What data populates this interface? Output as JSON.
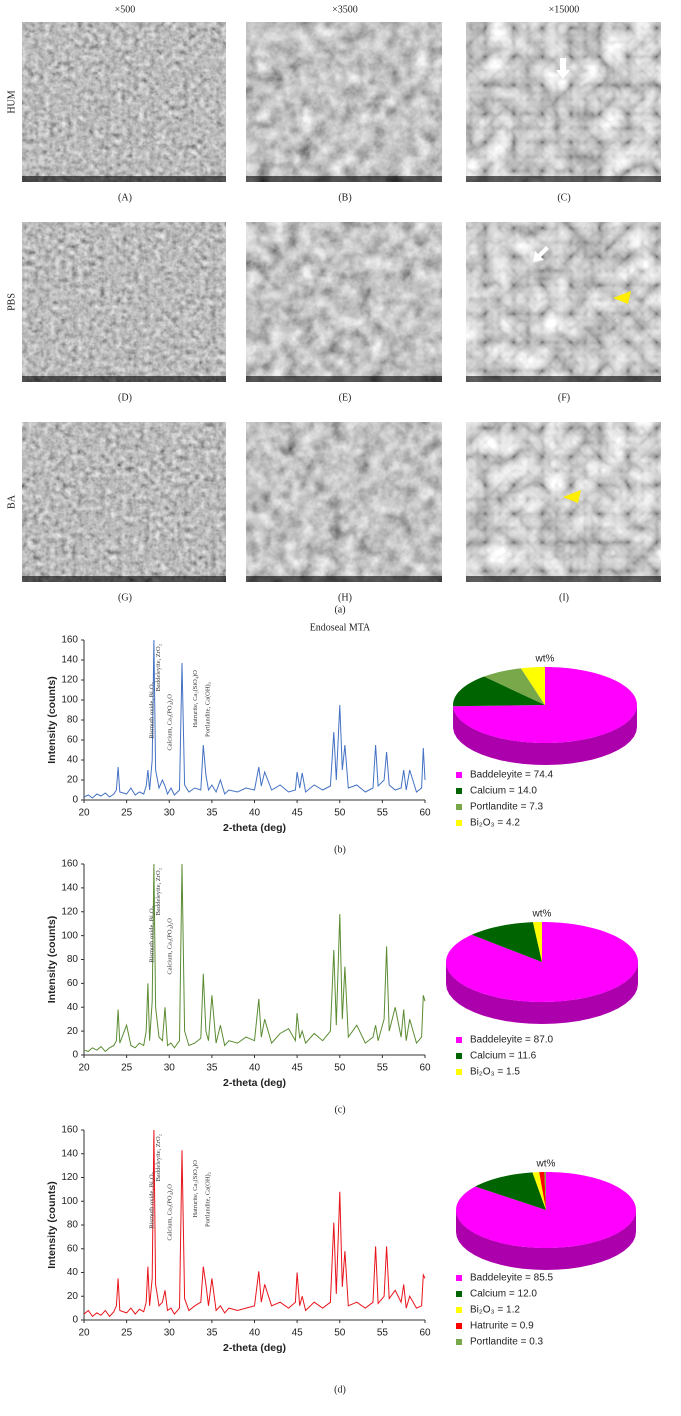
{
  "figure": {
    "column_labels": [
      "×500",
      "×3500",
      "×15000"
    ],
    "row_labels": [
      "HUM",
      "PBS",
      "BA"
    ],
    "panel_labels": [
      "(A)",
      "(B)",
      "(C)",
      "(D)",
      "(E)",
      "(F)",
      "(G)",
      "(H)",
      "(I)"
    ],
    "figure_labels": [
      "(a)",
      "(b)",
      "(c)",
      "(d)"
    ]
  },
  "chart_data": [
    {
      "type": "line",
      "title": "Endoseal MTA",
      "x_label": "2-theta (deg)",
      "y_label": "Intensity (counts)",
      "color": "#4472c4",
      "xlim": [
        20,
        60
      ],
      "xticks": [
        20,
        25,
        30,
        35,
        40,
        45,
        50,
        55,
        60
      ],
      "ylim": [
        0,
        160
      ],
      "yticks": [
        0,
        20,
        40,
        60,
        80,
        100,
        120,
        140,
        160
      ],
      "annotations": [
        {
          "text": "Baddeleyite, ZrO₂",
          "x": 28.3
        },
        {
          "text": "Bismuth oxide, Bi₂O₃",
          "x": 27.5
        },
        {
          "text": "Calcium, Ca₃(PO₄)₂O",
          "x": 29.6
        },
        {
          "text": "Hatrurite, Ca₃(SiO₄)O",
          "x": 32.6
        },
        {
          "text": "Portlandite, Ca(OH)₂",
          "x": 34.1
        }
      ],
      "x": [
        20,
        20.5,
        21,
        21.5,
        22,
        22.5,
        23,
        23.5,
        23.8,
        24,
        24.2,
        25,
        25.5,
        26,
        26.5,
        27,
        27.3,
        27.5,
        27.7,
        28,
        28.2,
        28.4,
        28.8,
        29.2,
        29.5,
        29.8,
        30.2,
        30.6,
        31.2,
        31.5,
        31.8,
        32.3,
        33,
        33.7,
        34,
        34.3,
        34.6,
        35,
        35.5,
        36,
        36.5,
        37,
        38,
        39,
        40,
        40.5,
        40.8,
        41.2,
        42,
        43,
        44,
        44.8,
        45,
        45.3,
        45.6,
        46,
        47,
        48,
        48.9,
        49.3,
        49.6,
        50,
        50.3,
        50.6,
        51,
        52,
        53,
        53.9,
        54.2,
        54.5,
        55.2,
        55.5,
        55.8,
        56.5,
        57.2,
        57.5,
        57.8,
        58.2,
        59,
        59.6,
        59.8,
        60
      ],
      "values": [
        3,
        5,
        2,
        6,
        4,
        7,
        3,
        6,
        10,
        33,
        8,
        6,
        12,
        5,
        8,
        6,
        14,
        30,
        10,
        40,
        160,
        30,
        12,
        20,
        14,
        6,
        12,
        5,
        10,
        137,
        15,
        8,
        12,
        10,
        55,
        25,
        10,
        15,
        8,
        20,
        6,
        10,
        8,
        12,
        10,
        33,
        14,
        28,
        10,
        15,
        8,
        10,
        28,
        12,
        27,
        8,
        15,
        10,
        14,
        68,
        20,
        95,
        30,
        55,
        12,
        15,
        8,
        12,
        55,
        14,
        20,
        48,
        15,
        10,
        12,
        30,
        10,
        30,
        8,
        12,
        52,
        20
      ]
    },
    {
      "type": "pie",
      "title": "wt%",
      "categories": [
        "Baddeleyite",
        "Calcium",
        "Portlandite",
        "Bi₂O₃"
      ],
      "values": [
        74.4,
        14.0,
        7.3,
        4.2
      ],
      "value_labels": [
        "Baddeleyite = 74.4",
        "Calcium = 14.0",
        "Portlandite = 7.3",
        "Bi₂O₃ = 4.2"
      ],
      "colors": [
        "#ff00ff",
        "#006400",
        "#78a84a",
        "#ffff00"
      ]
    },
    {
      "type": "line",
      "x_label": "2-theta (deg)",
      "y_label": "Intensity (counts)",
      "color": "#5b8c32",
      "xlim": [
        20,
        60
      ],
      "xticks": [
        20,
        25,
        30,
        35,
        40,
        45,
        50,
        55,
        60
      ],
      "ylim": [
        0,
        160
      ],
      "yticks": [
        0,
        20,
        40,
        60,
        80,
        100,
        120,
        140,
        160
      ],
      "annotations": [
        {
          "text": "Baddeleyite, ZrO₂",
          "x": 28.3
        },
        {
          "text": "Bismuth oxide, Bi₂O₃",
          "x": 27.5
        },
        {
          "text": "Calcium, Ca₃(PO₄)₂O",
          "x": 29.6
        }
      ],
      "x": [
        20,
        20.5,
        21,
        21.5,
        22,
        22.5,
        23,
        23.5,
        23.8,
        24,
        24.2,
        25,
        25.5,
        26,
        26.5,
        27,
        27.3,
        27.5,
        27.7,
        28,
        28.2,
        28.4,
        28.8,
        29.2,
        29.5,
        29.8,
        30.2,
        30.6,
        31.2,
        31.5,
        31.8,
        32.3,
        33,
        33.7,
        34,
        34.3,
        34.6,
        35,
        35.5,
        36,
        36.5,
        37,
        38,
        39,
        40,
        40.5,
        40.8,
        41.2,
        42,
        43,
        44,
        44.8,
        45,
        45.3,
        45.6,
        46,
        47,
        48,
        48.9,
        49.3,
        49.6,
        50,
        50.3,
        50.6,
        51,
        52,
        53,
        53.9,
        54.2,
        54.5,
        55.2,
        55.5,
        55.8,
        56.5,
        57.2,
        57.5,
        57.8,
        58.2,
        59,
        59.6,
        59.8,
        60
      ],
      "values": [
        4,
        3,
        6,
        4,
        7,
        3,
        6,
        8,
        12,
        38,
        10,
        25,
        8,
        6,
        10,
        8,
        20,
        60,
        12,
        45,
        160,
        40,
        15,
        12,
        40,
        8,
        10,
        6,
        12,
        160,
        20,
        8,
        10,
        14,
        68,
        20,
        12,
        50,
        10,
        25,
        8,
        12,
        10,
        15,
        12,
        47,
        15,
        30,
        10,
        18,
        22,
        12,
        35,
        14,
        20,
        10,
        18,
        12,
        20,
        88,
        25,
        118,
        30,
        74,
        15,
        25,
        10,
        15,
        25,
        12,
        30,
        91,
        20,
        40,
        15,
        38,
        12,
        30,
        10,
        15,
        50,
        45
      ]
    },
    {
      "type": "pie",
      "title": "wt%",
      "categories": [
        "Baddeleyite",
        "Calcium",
        "Bi₂O₃"
      ],
      "values": [
        87.0,
        11.6,
        1.5
      ],
      "value_labels": [
        "Baddeleyite = 87.0",
        "Calcium = 11.6",
        "Bi₂O₃ = 1.5"
      ],
      "colors": [
        "#ff00ff",
        "#006400",
        "#ffff00"
      ]
    },
    {
      "type": "line",
      "x_label": "2-theta (deg)",
      "y_label": "Intensity (counts)",
      "color": "#e8141b",
      "xlim": [
        20,
        60
      ],
      "xticks": [
        20,
        25,
        30,
        35,
        40,
        45,
        50,
        55,
        60
      ],
      "ylim": [
        0,
        160
      ],
      "yticks": [
        0,
        20,
        40,
        60,
        80,
        100,
        120,
        140,
        160
      ],
      "annotations": [
        {
          "text": "Baddeleyite, ZrO₂",
          "x": 28.3
        },
        {
          "text": "Bismuth oxide, Bi₂O₃",
          "x": 27.5
        },
        {
          "text": "Calcium, Ca₃(PO₄)₂O",
          "x": 29.6
        },
        {
          "text": "Hatrurite, Ca₃(SiO₄)O",
          "x": 32.6
        },
        {
          "text": "Portlandite, Ca(OH)₂",
          "x": 34.1
        }
      ],
      "x": [
        20,
        20.5,
        21,
        21.5,
        22,
        22.5,
        23,
        23.5,
        23.8,
        24,
        24.2,
        25,
        25.5,
        26,
        26.5,
        27,
        27.3,
        27.5,
        27.7,
        28,
        28.2,
        28.4,
        28.8,
        29.2,
        29.5,
        29.8,
        30.2,
        30.6,
        31.2,
        31.5,
        31.8,
        32.3,
        33,
        33.7,
        34,
        34.3,
        34.6,
        35,
        35.5,
        36,
        36.5,
        37,
        38,
        39,
        40,
        40.5,
        40.8,
        41.2,
        42,
        43,
        44,
        44.8,
        45,
        45.3,
        45.6,
        46,
        47,
        48,
        48.9,
        49.3,
        49.6,
        50,
        50.3,
        50.6,
        51,
        52,
        53,
        53.9,
        54.2,
        54.5,
        55.2,
        55.5,
        55.8,
        56.5,
        57.2,
        57.5,
        57.8,
        58.2,
        59,
        59.6,
        59.8,
        60
      ],
      "values": [
        5,
        8,
        3,
        6,
        4,
        8,
        3,
        7,
        12,
        35,
        8,
        6,
        10,
        5,
        9,
        7,
        15,
        45,
        12,
        35,
        160,
        30,
        12,
        15,
        25,
        8,
        10,
        5,
        10,
        143,
        18,
        8,
        12,
        15,
        45,
        30,
        12,
        35,
        8,
        12,
        6,
        10,
        8,
        10,
        12,
        41,
        15,
        30,
        12,
        15,
        10,
        15,
        40,
        12,
        20,
        8,
        15,
        10,
        15,
        82,
        22,
        108,
        28,
        58,
        12,
        15,
        10,
        15,
        62,
        14,
        20,
        62,
        18,
        25,
        15,
        30,
        10,
        20,
        10,
        12,
        38,
        35
      ]
    },
    {
      "type": "pie",
      "title": "wt%",
      "categories": [
        "Baddeleyite",
        "Calcium",
        "Bi₂O₃",
        "Hatrurite",
        "Portlandite"
      ],
      "values": [
        85.5,
        12.0,
        1.2,
        0.9,
        0.3
      ],
      "value_labels": [
        "Baddeleyite = 85.5",
        "Calcium = 12.0",
        "Bi₂O₃ = 1.2",
        "Hatrurite = 0.9",
        "Portlandite = 0.3"
      ],
      "colors": [
        "#ff00ff",
        "#006400",
        "#ffff00",
        "#ff0000",
        "#78a84a"
      ]
    }
  ]
}
